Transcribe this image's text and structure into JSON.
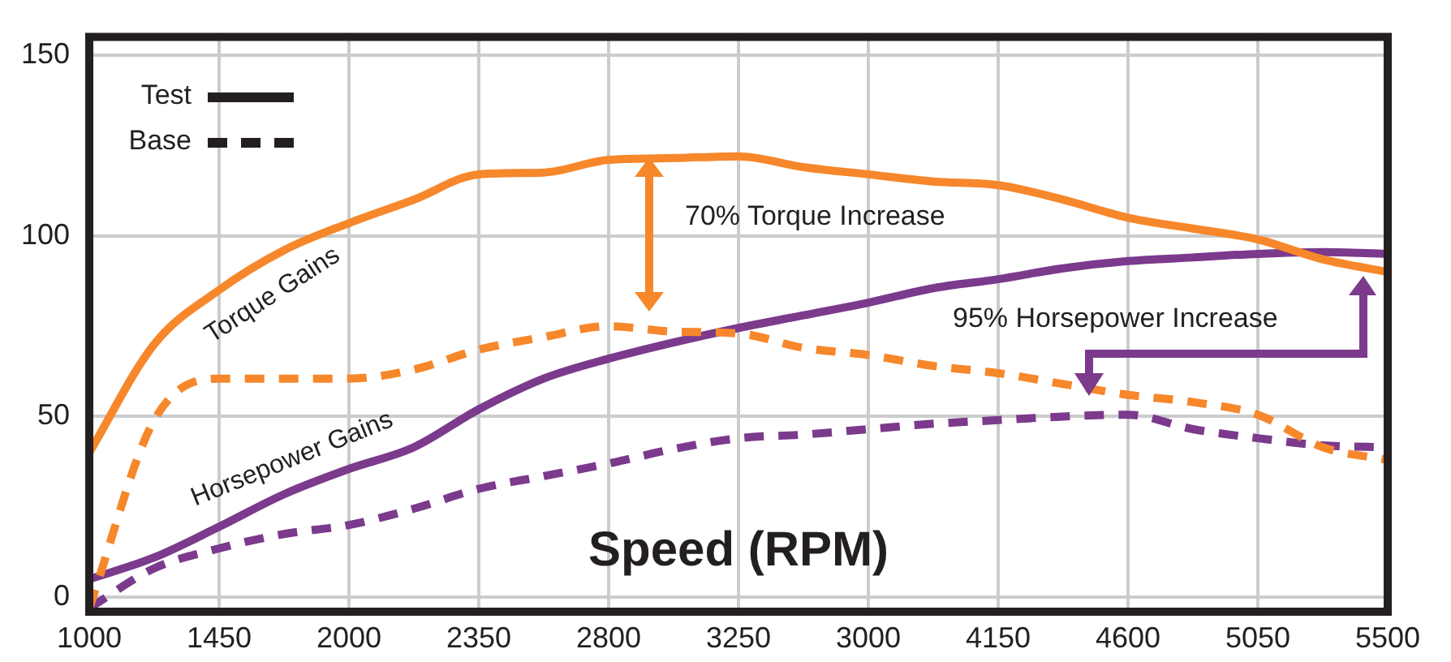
{
  "chart_data": {
    "type": "line",
    "xlabel": "Speed (RPM)",
    "categories": [
      "1000",
      null,
      "1450",
      null,
      "2000",
      null,
      "2350",
      null,
      "2800",
      null,
      "3250",
      null,
      "3000",
      null,
      "4150",
      null,
      "4600",
      null,
      "5050",
      null,
      "5500"
    ],
    "ylim": [
      -4,
      155
    ],
    "yticks": [
      0,
      50,
      100,
      150
    ],
    "grid": true,
    "marker": "none",
    "series": [
      {
        "color": "#f7872b",
        "line_style": "solid",
        "values": [
          40,
          70,
          85,
          96,
          103.5,
          110,
          117,
          117.5,
          121,
          121.5,
          122,
          119,
          117,
          115,
          114,
          110,
          105,
          102,
          99,
          93.5,
          90
        ]
      },
      {
        "color": "#f7872b",
        "line_style": "dashed",
        "values": [
          -3,
          49,
          60.5,
          60.5,
          60.5,
          63,
          68.5,
          72,
          75,
          73.5,
          73,
          69,
          67,
          64,
          62,
          59,
          56,
          54,
          50.5,
          41.5,
          38
        ]
      },
      {
        "color": "#7b3a8c",
        "line_style": "solid",
        "values": [
          5,
          11,
          19.5,
          28.5,
          35.5,
          41.5,
          52,
          60.5,
          66,
          70.5,
          74.5,
          78,
          81.5,
          85.5,
          88,
          91,
          93,
          94,
          95,
          95.5,
          95
        ]
      },
      {
        "color": "#7b3a8c",
        "line_style": "dashed",
        "values": [
          -3,
          8,
          13.5,
          17.5,
          20,
          24.5,
          30,
          33.5,
          37,
          41,
          44,
          45,
          46.5,
          48,
          49,
          50,
          50.5,
          46.5,
          44,
          42,
          41.5
        ]
      }
    ],
    "annotations": [
      "Test",
      "Base",
      "Torque Gains",
      "Horsepower Gains",
      "70% Torque Increase",
      "95% Horsepower Increase"
    ]
  }
}
